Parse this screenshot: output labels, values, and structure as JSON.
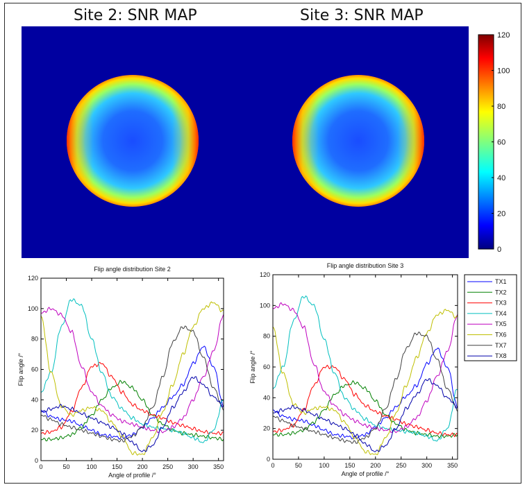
{
  "titles": {
    "site2_map": "Site 2: SNR MAP",
    "site3_map": "Site 3: SNR MAP"
  },
  "colors": {
    "background_blue": "#0000a0",
    "axis": "#000000"
  },
  "chart_data": [
    {
      "type": "heatmap",
      "title": "Site 2: SNR MAP",
      "description_values": {
        "center": 15,
        "edge": 90,
        "background": 0
      },
      "colorbar": {
        "ticks": [
          "0",
          "20",
          "40",
          "60",
          "80",
          "100",
          "120"
        ],
        "range": [
          0,
          120
        ],
        "colormap": "jet"
      }
    },
    {
      "type": "heatmap",
      "title": "Site 3: SNR MAP",
      "description_values": {
        "center": 15,
        "edge": 90,
        "background": 0
      },
      "colorbar": {
        "ticks": [
          "0",
          "20",
          "40",
          "60",
          "80",
          "100",
          "120"
        ],
        "range": [
          0,
          120
        ],
        "colormap": "jet"
      }
    },
    {
      "type": "line",
      "title": "Flip angle distribution Site 2",
      "xlabel": "Angle of profile /°",
      "ylabel": "Flip angle /°",
      "xlim": [
        0,
        360
      ],
      "ylim": [
        0,
        120
      ],
      "xticks": [
        "0",
        "50",
        "100",
        "150",
        "200",
        "250",
        "300",
        "350"
      ],
      "yticks": [
        "0",
        "20",
        "40",
        "60",
        "80",
        "100",
        "120"
      ],
      "x": [
        0,
        20,
        40,
        60,
        80,
        100,
        120,
        140,
        160,
        180,
        200,
        220,
        240,
        260,
        280,
        300,
        320,
        340,
        360
      ],
      "series": [
        {
          "name": "TX1",
          "color": "#0000ff",
          "values": [
            33,
            29,
            27,
            26,
            23,
            20,
            17,
            16,
            15,
            17,
            22,
            28,
            35,
            42,
            50,
            64,
            75,
            62,
            36
          ]
        },
        {
          "name": "TX2",
          "color": "#008000",
          "values": [
            14,
            14,
            15,
            17,
            22,
            30,
            40,
            48,
            52,
            48,
            40,
            30,
            24,
            20,
            18,
            17,
            16,
            15,
            14
          ]
        },
        {
          "name": "TX3",
          "color": "#ff0000",
          "values": [
            18,
            19,
            22,
            32,
            48,
            62,
            64,
            55,
            45,
            37,
            33,
            30,
            28,
            25,
            23,
            21,
            19,
            18,
            18
          ]
        },
        {
          "name": "TX4",
          "color": "#00bfbf",
          "values": [
            45,
            58,
            88,
            106,
            102,
            80,
            58,
            42,
            34,
            28,
            24,
            22,
            21,
            20,
            18,
            15,
            12,
            20,
            40
          ]
        },
        {
          "name": "TX5",
          "color": "#bf00bf",
          "values": [
            97,
            100,
            96,
            85,
            62,
            45,
            36,
            30,
            26,
            24,
            22,
            20,
            19,
            22,
            28,
            40,
            55,
            72,
            96
          ]
        },
        {
          "name": "TX6",
          "color": "#bfbf00",
          "values": [
            95,
            58,
            36,
            30,
            33,
            35,
            33,
            25,
            16,
            5,
            4,
            15,
            32,
            50,
            70,
            88,
            100,
            104,
            98
          ]
        },
        {
          "name": "TX7",
          "color": "#404040",
          "values": [
            30,
            27,
            24,
            22,
            20,
            18,
            16,
            14,
            13,
            16,
            22,
            35,
            55,
            78,
            88,
            85,
            68,
            48,
            34
          ]
        },
        {
          "name": "TX8",
          "color": "#0000aa",
          "values": [
            32,
            34,
            36,
            34,
            31,
            28,
            25,
            22,
            18,
            12,
            6,
            10,
            22,
            35,
            45,
            55,
            50,
            42,
            36
          ]
        }
      ]
    },
    {
      "type": "line",
      "title": "Flip angle distribution Site 3",
      "xlabel": "Angle of profile /°",
      "ylabel": "Flip angle /°",
      "xlim": [
        0,
        360
      ],
      "ylim": [
        0,
        120
      ],
      "xticks": [
        "0",
        "50",
        "100",
        "150",
        "200",
        "250",
        "300",
        "350"
      ],
      "yticks": [
        "0",
        "20",
        "40",
        "60",
        "80",
        "100",
        "120"
      ],
      "x": [
        0,
        20,
        40,
        60,
        80,
        100,
        120,
        140,
        160,
        180,
        200,
        220,
        240,
        260,
        280,
        300,
        320,
        340,
        360
      ],
      "series": [
        {
          "name": "TX1",
          "color": "#0000ff",
          "values": [
            32,
            28,
            26,
            25,
            22,
            19,
            16,
            15,
            14,
            16,
            21,
            27,
            34,
            41,
            48,
            62,
            72,
            60,
            34
          ]
        },
        {
          "name": "TX2",
          "color": "#008000",
          "values": [
            16,
            16,
            17,
            19,
            24,
            32,
            42,
            48,
            50,
            46,
            38,
            29,
            23,
            19,
            17,
            16,
            15,
            15,
            16
          ]
        },
        {
          "name": "TX3",
          "color": "#ff0000",
          "values": [
            18,
            19,
            22,
            32,
            48,
            60,
            60,
            52,
            42,
            35,
            31,
            28,
            26,
            23,
            21,
            19,
            17,
            16,
            16
          ]
        },
        {
          "name": "TX4",
          "color": "#00bfbf",
          "values": [
            46,
            60,
            90,
            106,
            100,
            78,
            56,
            40,
            32,
            26,
            22,
            20,
            19,
            18,
            17,
            15,
            12,
            20,
            46
          ]
        },
        {
          "name": "TX5",
          "color": "#bf00bf",
          "values": [
            98,
            101,
            97,
            86,
            62,
            44,
            35,
            29,
            25,
            22,
            20,
            19,
            18,
            21,
            27,
            38,
            54,
            70,
            94
          ]
        },
        {
          "name": "TX6",
          "color": "#bfbf00",
          "values": [
            86,
            56,
            36,
            30,
            33,
            34,
            32,
            24,
            14,
            5,
            3,
            14,
            30,
            48,
            66,
            82,
            94,
            97,
            92
          ]
        },
        {
          "name": "TX7",
          "color": "#404040",
          "values": [
            28,
            25,
            22,
            20,
            18,
            16,
            14,
            12,
            11,
            14,
            20,
            33,
            52,
            72,
            82,
            80,
            65,
            46,
            32
          ]
        },
        {
          "name": "TX8",
          "color": "#0000aa",
          "values": [
            30,
            32,
            34,
            32,
            29,
            26,
            23,
            20,
            16,
            10,
            5,
            9,
            20,
            33,
            42,
            52,
            48,
            40,
            34
          ]
        }
      ]
    }
  ]
}
